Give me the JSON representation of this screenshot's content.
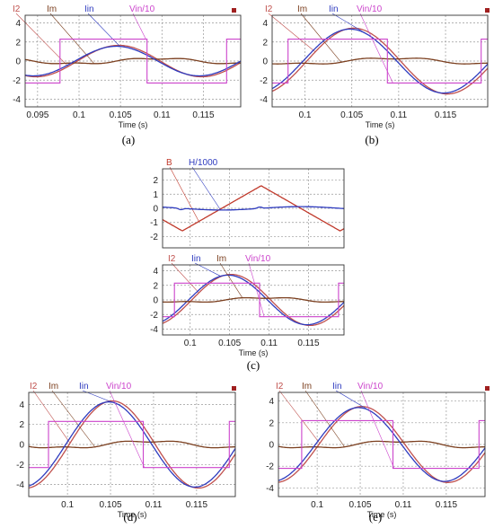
{
  "captions": {
    "a": "(a)",
    "b": "(b)",
    "c": "(c)",
    "d": "(d)",
    "e": "(e)"
  },
  "colors": {
    "I2": "#c0504d",
    "Im": "#7b3f1f",
    "Iin": "#2e3bbf",
    "Vin": "#cc44cc",
    "B": "#c0392b",
    "H": "#2e3bbf",
    "marker": "#a02020"
  },
  "chart_data": [
    {
      "id": "a",
      "type": "line",
      "caption": "(a)",
      "xlabel": "Time (s)",
      "xlim": [
        0.0935,
        0.1195
      ],
      "ylim": [
        -4.8,
        4.8
      ],
      "grid": true,
      "xticks": [
        0.095,
        0.1,
        0.105,
        0.11,
        0.115
      ],
      "xtick_labels": [
        "0.095",
        "0.1",
        "0.105",
        "0.11",
        "0.115"
      ],
      "yticks": [
        -4,
        -2,
        0,
        2,
        4
      ],
      "ytick_labels": [
        "-4",
        "-2",
        "0",
        "2",
        "4"
      ],
      "series": [
        {
          "name": "I2",
          "key": "I2",
          "kind": "sine",
          "amp": 1.65,
          "peak": 0.1048,
          "period": 0.02
        },
        {
          "name": "Im",
          "key": "Im",
          "kind": "im",
          "slope": 0.18,
          "tip": 1.35
        },
        {
          "name": "Iin",
          "key": "Iin",
          "kind": "sine",
          "amp": 1.55,
          "peak": 0.1045,
          "period": 0.02
        },
        {
          "name": "Vin/10",
          "key": "Vin",
          "kind": "square",
          "level": 2.3,
          "edges": [
            0.0977,
            0.1082,
            0.1178
          ]
        }
      ]
    },
    {
      "id": "b",
      "type": "line",
      "caption": "(b)",
      "xlabel": "Time (s)",
      "xlim": [
        0.0965,
        0.1195
      ],
      "ylim": [
        -4.8,
        4.8
      ],
      "grid": true,
      "xticks": [
        0.1,
        0.105,
        0.11,
        0.115
      ],
      "xtick_labels": [
        "0.1",
        "0.105",
        "0.11",
        "0.115"
      ],
      "yticks": [
        -4,
        -2,
        0,
        2,
        4
      ],
      "ytick_labels": [
        "-4",
        "-2",
        "0",
        "2",
        "4"
      ],
      "series": [
        {
          "name": "I2",
          "key": "I2",
          "kind": "sine",
          "amp": 3.45,
          "peak": 0.1052,
          "period": 0.02
        },
        {
          "name": "Im",
          "key": "Im",
          "kind": "im",
          "slope": 0.2,
          "tip": 1.3
        },
        {
          "name": "Iin",
          "key": "Iin",
          "kind": "sine",
          "amp": 3.35,
          "peak": 0.1048,
          "period": 0.02
        },
        {
          "name": "Vin/10",
          "key": "Vin",
          "kind": "square",
          "level": 2.3,
          "edges": [
            0.0982,
            0.1088,
            0.1188
          ]
        }
      ]
    },
    {
      "id": "c1",
      "type": "line",
      "caption": "",
      "xlabel": "",
      "xlim": [
        0.0965,
        0.1195
      ],
      "ylim": [
        -2.8,
        2.8
      ],
      "grid": true,
      "xticks": [
        0.1,
        0.105,
        0.11,
        0.115
      ],
      "xtick_labels": [],
      "yticks": [
        -2,
        -1,
        0,
        1,
        2
      ],
      "ytick_labels": [
        "-2",
        "-1",
        "0",
        "1",
        "2"
      ],
      "series": [
        {
          "name": "B",
          "key": "B",
          "kind": "triangle",
          "amp": 1.6,
          "peak": 0.109,
          "period": 0.02
        },
        {
          "name": "H/1000",
          "key": "H",
          "kind": "hflat",
          "amp": 0.12
        }
      ]
    },
    {
      "id": "c2",
      "type": "line",
      "caption": "(c)",
      "xlabel": "Time (s)",
      "xlim": [
        0.0965,
        0.1195
      ],
      "ylim": [
        -4.8,
        4.8
      ],
      "grid": true,
      "xticks": [
        0.1,
        0.105,
        0.11,
        0.115
      ],
      "xtick_labels": [
        "0.1",
        "0.105",
        "0.11",
        "0.115"
      ],
      "yticks": [
        -4,
        -2,
        0,
        2,
        4
      ],
      "ytick_labels": [
        "-4",
        "-2",
        "0",
        "2",
        "4"
      ],
      "series": [
        {
          "name": "I2",
          "key": "I2",
          "kind": "sine",
          "amp": 3.5,
          "peak": 0.1052,
          "period": 0.02
        },
        {
          "name": "Iin",
          "key": "Iin",
          "kind": "sine",
          "amp": 3.4,
          "peak": 0.1048,
          "period": 0.02
        },
        {
          "name": "Im",
          "key": "Im",
          "kind": "im",
          "slope": 0.2,
          "tip": 1.3
        },
        {
          "name": "Vin/10",
          "key": "Vin",
          "kind": "square",
          "level": 2.3,
          "edges": [
            0.098,
            0.1088,
            0.1188
          ]
        }
      ]
    },
    {
      "id": "d",
      "type": "line",
      "caption": "(d)",
      "xlabel": "Time (s)",
      "xlim": [
        0.0955,
        0.1195
      ],
      "ylim": [
        -5.2,
        5.2
      ],
      "grid": true,
      "xticks": [
        0.1,
        0.105,
        0.11,
        0.115
      ],
      "xtick_labels": [
        "0.1",
        "0.105",
        "0.11",
        "0.115"
      ],
      "yticks": [
        -4,
        -2,
        0,
        2,
        4
      ],
      "ytick_labels": [
        "-4",
        "-2",
        "0",
        "2",
        "4"
      ],
      "series": [
        {
          "name": "I2",
          "key": "I2",
          "kind": "sine",
          "amp": 4.35,
          "peak": 0.1052,
          "period": 0.02
        },
        {
          "name": "Im",
          "key": "Im",
          "kind": "im",
          "slope": 0.22,
          "tip": 1.3
        },
        {
          "name": "Iin",
          "key": "Iin",
          "kind": "sine",
          "amp": 4.25,
          "peak": 0.1048,
          "period": 0.02
        },
        {
          "name": "Vin/10",
          "key": "Vin",
          "kind": "square",
          "level": 2.3,
          "edges": [
            0.0978,
            0.1088,
            0.1188
          ]
        }
      ]
    },
    {
      "id": "e",
      "type": "line",
      "caption": "(e)",
      "xlabel": "Time (s)",
      "xlim": [
        0.0955,
        0.1195
      ],
      "ylim": [
        -4.8,
        4.8
      ],
      "grid": true,
      "xticks": [
        0.1,
        0.105,
        0.11,
        0.115
      ],
      "xtick_labels": [
        "0.1",
        "0.105",
        "0.11",
        "0.115"
      ],
      "yticks": [
        -4,
        -2,
        0,
        2,
        4
      ],
      "ytick_labels": [
        "-4",
        "-2",
        "0",
        "2",
        "4"
      ],
      "series": [
        {
          "name": "I2",
          "key": "I2",
          "kind": "sine",
          "amp": 3.5,
          "peak": 0.1052,
          "period": 0.02
        },
        {
          "name": "Im",
          "key": "Im",
          "kind": "im",
          "slope": 0.2,
          "tip": 1.3
        },
        {
          "name": "Iin",
          "key": "Iin",
          "kind": "sine",
          "amp": 3.4,
          "peak": 0.1048,
          "period": 0.02
        },
        {
          "name": "Vin/10",
          "key": "Vin",
          "kind": "square",
          "level": 2.2,
          "edges": [
            0.0982,
            0.1088,
            0.1188
          ]
        }
      ]
    }
  ]
}
